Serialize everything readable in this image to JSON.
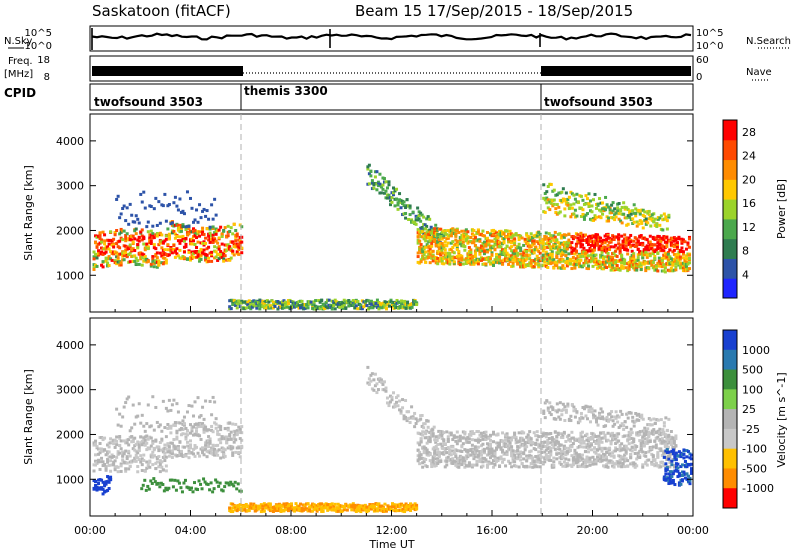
{
  "header": {
    "radar_title": "Saskatoon (fitACF)",
    "beam_date": "Beam 15  17/Sep/2015 - 18/Sep/2015"
  },
  "strip": {
    "nsky_label": "N.Sky",
    "nsky_ticks": [
      "10^5",
      "10^0"
    ],
    "nsearch_label": "N.Search",
    "freq_label_1": "Freq.",
    "freq_label_2": "[MHz]",
    "freq_ticks": [
      "18",
      "8"
    ],
    "nave_ticks": [
      "60",
      "0"
    ],
    "nave_label": "Nave",
    "cpid_label": "CPID"
  },
  "modes": [
    {
      "name": "twofsound 3503",
      "start": "00:00",
      "end": "06:00"
    },
    {
      "name": "themis 3300",
      "start": "06:00",
      "end": "18:00"
    },
    {
      "name": "twofsound 3503",
      "start": "18:00",
      "end": "24:00"
    }
  ],
  "colors": {
    "power_scale": [
      "#1f25ff",
      "#2d53a8",
      "#2f7c50",
      "#4ba84c",
      "#9bd32a",
      "#ffc800",
      "#ff8c00",
      "#ff4a00",
      "#ff0000"
    ],
    "velocity_scale": [
      "#1840d0",
      "#2a7ab0",
      "#3c8f3c",
      "#7dd04a",
      "#b4b4b4",
      "#c8c8c8",
      "#ffc000",
      "#ff8c00",
      "#ff0000"
    ],
    "mode_line": "#b0b0b0"
  },
  "chart_data": [
    {
      "type": "heatmap",
      "name": "power",
      "ylabel": "Slant Range [km]",
      "xlim": [
        "00:00",
        "24:00"
      ],
      "ylim": [
        180,
        4600
      ],
      "yticks": [
        "1000",
        "2000",
        "3000",
        "4000"
      ],
      "colorbar_label": "Power [dB]",
      "colorbar_ticks": [
        "4",
        "8",
        "12",
        "16",
        "20",
        "24",
        "28"
      ],
      "colorbar_range": [
        0,
        30
      ],
      "features": [
        {
          "t_start": 0.0,
          "t_end": 6.0,
          "range_km": [
            1200,
            2000
          ],
          "level_db": 14
        },
        {
          "t_start": 13.0,
          "t_end": 24.0,
          "range_km": [
            1300,
            2100
          ],
          "level_db": 20
        },
        {
          "t_start": 6.0,
          "t_end": 13.0,
          "range_km": [
            200,
            500
          ],
          "level_db": 12
        },
        {
          "t_start": 11.0,
          "t_end": 13.5,
          "range_km": [
            2500,
            3400
          ],
          "level_db": 8
        }
      ]
    },
    {
      "type": "heatmap",
      "name": "velocity",
      "xlabel": "Time UT",
      "ylabel": "Slant Range [km]",
      "xticks": [
        "00:00",
        "04:00",
        "08:00",
        "12:00",
        "16:00",
        "20:00",
        "00:00"
      ],
      "yticks": [
        "1000",
        "2000",
        "3000",
        "4000"
      ],
      "ylim": [
        180,
        4600
      ],
      "colorbar_label": "Velocity [m s^-1]",
      "colorbar_ticks": [
        "1000",
        "500",
        "100",
        "25",
        "-25",
        "-100",
        "-500",
        "-1000"
      ]
    }
  ]
}
